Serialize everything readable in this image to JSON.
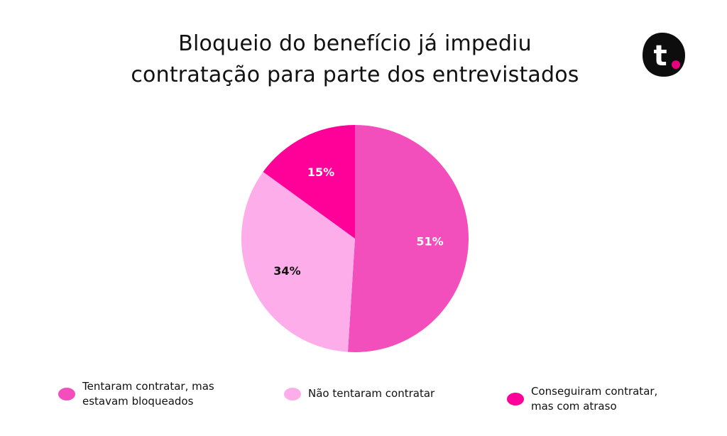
{
  "title": {
    "line1": "Bloqueio do benefício já impediu",
    "line2": "contratação para parte dos entrevistados"
  },
  "logo": {
    "letter": "t",
    "background": "#0d0d0d",
    "dot_color": "#e6007e"
  },
  "chart_data": {
    "type": "pie",
    "title": "Bloqueio do benefício já impediu contratação para parte dos entrevistados",
    "categories": [
      "Tentaram contratar, mas estavam bloqueados",
      "Não tentaram contratar",
      "Conseguiram contratar, mas com atraso"
    ],
    "values": [
      51,
      34,
      15
    ],
    "value_labels": [
      "51%",
      "34%",
      "15%"
    ],
    "colors": [
      "#f24fbd",
      "#fdaeea",
      "#ff0099"
    ],
    "label_colors": [
      "#ffffff",
      "#111111",
      "#ffffff"
    ],
    "legend_position": "bottom"
  },
  "legend": [
    {
      "label": "Tentaram contratar, mas\nestavam bloqueados",
      "color": "#f24fbd"
    },
    {
      "label": "Não tentaram contratar",
      "color": "#fdaeea"
    },
    {
      "label": "Conseguiram contratar,\nmas com atraso",
      "color": "#ff0099"
    }
  ]
}
